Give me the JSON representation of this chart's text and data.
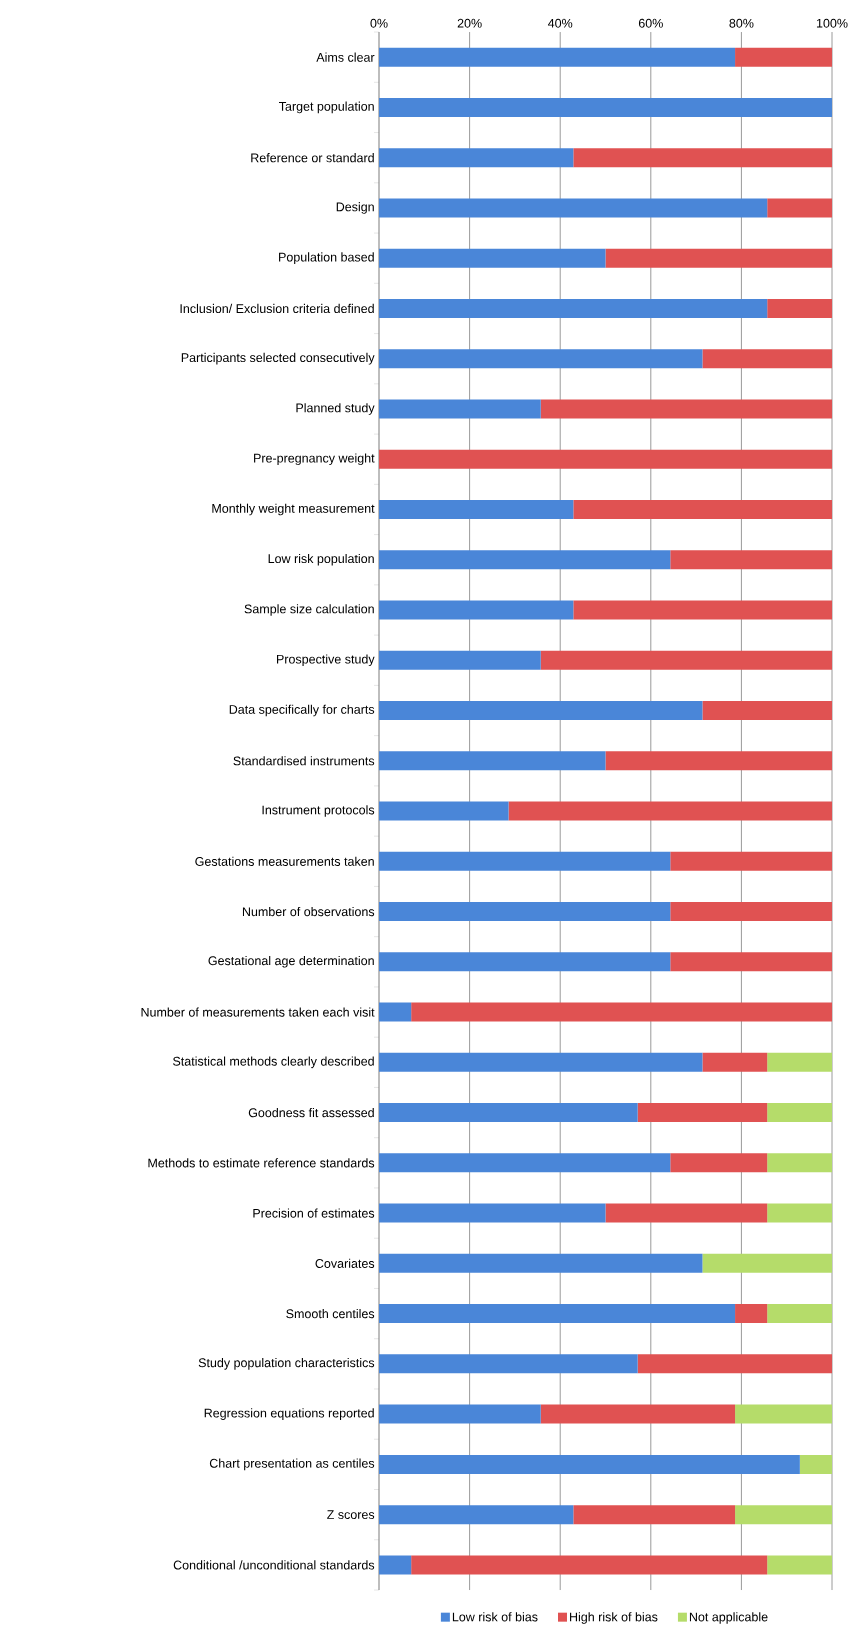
{
  "chart_data": {
    "type": "bar",
    "orientation": "horizontal",
    "stacked": true,
    "categories": [
      "Aims clear",
      "Target population",
      "Reference or standard",
      "Design",
      "Population based",
      "Inclusion/ Exclusion criteria defined",
      "Participants selected consecutively",
      "Planned study",
      "Pre-pregnancy weight",
      "Monthly weight measurement",
      "Low risk population",
      "Sample size calculation",
      "Prospective study",
      "Data specifically for charts",
      "Standardised instruments",
      "Instrument protocols",
      "Gestations measurements taken",
      "Number of observations",
      "Gestational age determination",
      "Number of measurements taken each visit",
      "Statistical methods clearly described",
      "Goodness fit assessed",
      "Methods to estimate reference standards",
      "Precision of estimates",
      "Covariates",
      "Smooth centiles",
      "Study population characteristics",
      "Regression equations reported",
      "Chart presentation as centiles",
      "Z scores",
      "Conditional /unconditional standards"
    ],
    "series": [
      {
        "name": "Low risk of bias",
        "color": "#4a86d8",
        "values": [
          78.6,
          100,
          42.9,
          85.7,
          50,
          85.7,
          71.4,
          35.7,
          0,
          42.9,
          64.3,
          42.9,
          35.7,
          71.4,
          50,
          28.6,
          64.3,
          64.3,
          64.3,
          7.1,
          71.4,
          57.1,
          64.3,
          50,
          71.4,
          78.6,
          57.1,
          35.7,
          92.9,
          42.9,
          7.1
        ]
      },
      {
        "name": "High risk of bias",
        "color": "#e05252",
        "values": [
          21.4,
          0,
          57.1,
          14.3,
          50,
          14.3,
          28.6,
          64.3,
          100,
          57.1,
          35.7,
          57.1,
          64.3,
          28.6,
          50,
          71.4,
          35.7,
          35.7,
          35.7,
          92.9,
          14.3,
          28.6,
          21.4,
          35.7,
          0,
          7.1,
          42.9,
          42.9,
          0,
          35.7,
          78.6
        ]
      },
      {
        "name": "Not applicable",
        "color": "#b5dc6a",
        "values": [
          0,
          0,
          0,
          0,
          0,
          0,
          0,
          0,
          0,
          0,
          0,
          0,
          0,
          0,
          0,
          0,
          0,
          0,
          0,
          0,
          14.3,
          14.3,
          14.3,
          14.3,
          28.6,
          14.3,
          0,
          21.4,
          7.1,
          21.4,
          14.3
        ]
      }
    ],
    "xlim": [
      0,
      100
    ],
    "xticks": [
      {
        "value": 0,
        "label": "0%"
      },
      {
        "value": 20,
        "label": "20%"
      },
      {
        "value": 40,
        "label": "40%"
      },
      {
        "value": 60,
        "label": "60%"
      },
      {
        "value": 80,
        "label": "80%"
      },
      {
        "value": 100,
        "label": "100%"
      }
    ],
    "grid": "x",
    "legend": "bottom"
  }
}
